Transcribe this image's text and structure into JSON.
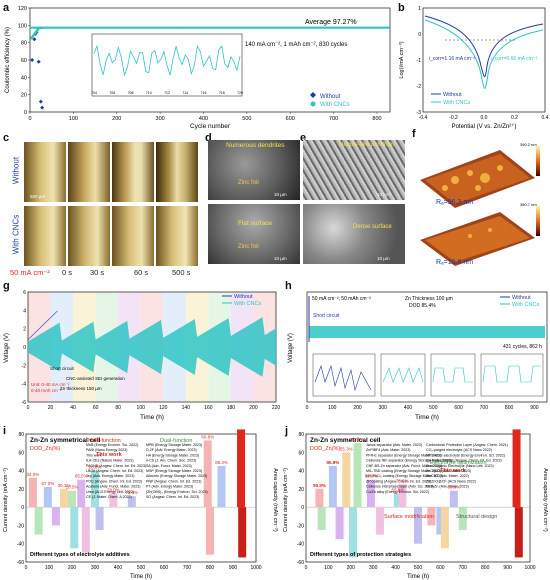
{
  "panel_labels": {
    "a": "a",
    "b": "b",
    "c": "c",
    "d": "d",
    "e": "e",
    "f": "f",
    "g": "g",
    "h": "h",
    "i": "i",
    "j": "j"
  },
  "colors": {
    "without": "#1f3ba8",
    "with_cncs": "#2fc4c4",
    "red": "#e0261d",
    "green": "#2a9a3a",
    "purple": "#8a3fb0"
  },
  "chart_data": [
    {
      "id": "a",
      "type": "scatter",
      "xlabel": "Cycle number",
      "ylabel": "Coulombic efficiency (%)",
      "xlim": [
        0,
        830
      ],
      "ylim": [
        0,
        120
      ],
      "xticks": [
        "0",
        "100",
        "200",
        "300",
        "400",
        "500",
        "600",
        "700",
        "800"
      ],
      "yticks": [
        "0",
        "20",
        "40",
        "60",
        "80",
        "100",
        "120"
      ],
      "series": [
        {
          "name": "Without",
          "symbol": "diamond"
        },
        {
          "name": "With CNCs",
          "symbol": "circle"
        }
      ],
      "annotations": [
        "Average 97.27%",
        "140 mA cm⁻², 1 mAh cm⁻², 830 cycles"
      ],
      "inset": {
        "xlim": [
          704,
          720
        ],
        "ylim": [
          92,
          100
        ],
        "xticks": [
          "704",
          "706",
          "708",
          "710",
          "712",
          "714",
          "716",
          "718",
          "720"
        ]
      },
      "points_without": [
        [
          5,
          60
        ],
        [
          10,
          84
        ],
        [
          12,
          90
        ],
        [
          15,
          92
        ],
        [
          20,
          58
        ],
        [
          25,
          12
        ],
        [
          28,
          5
        ]
      ],
      "avg": 97.27
    },
    {
      "id": "b",
      "type": "line",
      "xlabel": "Potential (V vs. Zn/Zn²⁺)",
      "ylabel": "Log(i/mA cm⁻²)",
      "xlim": [
        -0.4,
        0.4
      ],
      "xticks": [
        "-0.4",
        "-0.2",
        "0.0",
        "0.2",
        "0.4"
      ],
      "yticks": [
        "-3",
        "-2",
        "-1",
        "0",
        "1"
      ],
      "series": [
        {
          "name": "Without"
        },
        {
          "name": "With CNCs"
        }
      ],
      "annotations": [
        "i_corr=1.16 mA cm⁻²",
        "i_corr=0.66 mA cm⁻²"
      ]
    },
    {
      "id": "g",
      "type": "line",
      "xlabel": "Time (h)",
      "ylabel": "Voltage (V)",
      "xlim": [
        0,
        220
      ],
      "xticks": [
        "0",
        "20",
        "40",
        "60",
        "80",
        "100",
        "120",
        "140",
        "160",
        "180",
        "200",
        "220"
      ],
      "ylim": [
        -6,
        6
      ],
      "yticks": [
        "-6",
        "-4",
        "-2",
        "0",
        "2",
        "4",
        "6"
      ],
      "series": [
        {
          "name": "Without"
        },
        {
          "name": "With CNCs"
        }
      ],
      "annotations": [
        "Short circuit",
        "CNC-assisted SEI generation",
        "Zn thickness 150 µm",
        "Unit: 0-40 mA cm⁻²",
        "0-40 mAh cm⁻²"
      ]
    },
    {
      "id": "h",
      "type": "line",
      "xlabel": "Time (h)",
      "ylabel": "Voltage (V)",
      "xlim": [
        0,
        950
      ],
      "xticks": [
        "0",
        "100",
        "200",
        "300",
        "400",
        "500",
        "600",
        "700",
        "800",
        "900"
      ],
      "series": [
        {
          "name": "Without"
        },
        {
          "name": "With CNCs"
        }
      ],
      "annotations": [
        "50 mA cm⁻², 50 mAh cm⁻²",
        "Zn Thickness 100 µm",
        "DOD 85.4%",
        "Short circuit",
        "431 cycles, 862 h"
      ]
    },
    {
      "id": "i",
      "type": "bar",
      "title": "Zn-Zn symmetrical cell",
      "subtitle": "DOD_Zn(%)",
      "xlabel": "Time (h)",
      "ylabel": "Current density (mA cm⁻²)",
      "ylabel2": "Area capacity (mAh cm⁻²)",
      "xlim": [
        0,
        1000
      ],
      "xticks": [
        "0",
        "100",
        "200",
        "300",
        "400",
        "500",
        "600",
        "700",
        "800",
        "900",
        "1000"
      ],
      "yticks": [
        "-60",
        "-40",
        "-20",
        "0",
        "20",
        "40",
        "60",
        "80"
      ],
      "footer": "Different types of electrolyte additives",
      "group_labels": [
        "Multi-function",
        "Dual-function"
      ],
      "this_work_label": "This work",
      "this_work_value": "85.4%",
      "value_labels": [
        "34.0%",
        "67.0%",
        "30.1%",
        "10.5%",
        "65.5%",
        "20.8%",
        "29.0%",
        "73.5%",
        "60.8%",
        "85.4%"
      ],
      "bars_pos": [
        [
          30,
          32
        ],
        [
          95,
          22
        ],
        [
          165,
          20
        ],
        [
          200,
          18
        ],
        [
          240,
          30
        ],
        [
          300,
          40
        ],
        [
          380,
          15
        ],
        [
          460,
          12
        ],
        [
          790,
          73
        ],
        [
          850,
          45
        ],
        [
          935,
          85
        ]
      ],
      "bars_neg": [
        [
          55,
          -30
        ],
        [
          130,
          -20
        ],
        [
          210,
          -45
        ],
        [
          260,
          -50
        ],
        [
          320,
          -25
        ],
        [
          800,
          -52
        ],
        [
          940,
          -55
        ]
      ],
      "refs": [
        "MnB (Energy Environ. Sci. 2022)",
        "PANI (Nano Energy 2023)",
        "This work",
        "ILA-CEs (Nature Mater. 2023)",
        "PACNB (Angew. Chem. Int. Ed. 2023)",
        "LBG6 (Angew. Chem. Int. Ed. 2023)",
        "Jep (Adv. Energy Mater. 2023)",
        "POC (Angew. Chem. Int. Ed. 2023)",
        "Acetone (Adv. Funct. Mater. 2023)",
        "Urea (ACS Energy Lett. 2022)",
        "CE (J. Mater. Chem. A 2022)",
        "MPB (Energy Storage Mater. 2023)",
        "D-2F (Adv. Energy Mater. 2023)",
        "HA (Energy Storage Mater. 2023)",
        "n-CS (J. Am. Chem. Soc. 2023)",
        "SA (Adv. Funct. Mater. 2023)",
        "MSP (Energy Storage Mater. 2023)",
        "Albumin (Energy Storage Mater. 2023)",
        "PNP (Angew. Chem. Int. Ed. 2023)",
        "PT (Adv. Energy Mater. 2023)",
        "(Zn(OBS)₂ (Energy Environ. Sci. 2023)",
        "SO (Angew. Chem. Int. Ed. 2023)"
      ]
    },
    {
      "id": "j",
      "type": "bar",
      "title": "Zn-Zn symmetrical cell",
      "subtitle": "DOD_Zn(%)",
      "xlabel": "Time (h)",
      "ylabel": "Current density (mA cm⁻²)",
      "ylabel2": "Area capacity (mAh cm⁻²)",
      "xlim": [
        0,
        1000
      ],
      "xticks": [
        "0",
        "100",
        "200",
        "300",
        "400",
        "500",
        "600",
        "700",
        "800",
        "900",
        "1000"
      ],
      "yticks": [
        "-60",
        "-40",
        "-20",
        "0",
        "20",
        "40",
        "60",
        "80"
      ],
      "footer": "Different types of protection strategies",
      "group_labels": [
        "Electrolyte optimization",
        "Surface modification",
        "Structural design"
      ],
      "this_work_label": "This work",
      "this_work_value": "85.4%",
      "value_labels": [
        "74.3%",
        "56.9%",
        "55.3%",
        "51.3%",
        "62.9%",
        "55.8%",
        "75.5%",
        "60.8%",
        "40.6%",
        "90.9%",
        "85.4%"
      ],
      "bars_pos": [
        [
          60,
          20
        ],
        [
          120,
          45
        ],
        [
          180,
          60
        ],
        [
          230,
          70
        ],
        [
          290,
          30
        ],
        [
          410,
          15
        ],
        [
          430,
          25
        ],
        [
          660,
          18
        ],
        [
          940,
          85
        ]
      ],
      "bars_neg": [
        [
          70,
          -25
        ],
        [
          150,
          -35
        ],
        [
          210,
          -55
        ],
        [
          330,
          -30
        ],
        [
          500,
          -40
        ],
        [
          560,
          -20
        ],
        [
          600,
          -30
        ],
        [
          620,
          -45
        ],
        [
          700,
          -25
        ],
        [
          950,
          -55
        ]
      ],
      "refs": [
        "Janus separator (Adv. Mater. 2023)",
        "ZnPIBF4 (Adv. Mater. 2023)",
        "PFR-E separator (Energy Storage Mater. 2023)",
        "Cellulose film separator (Energy Storage Mater. 2023)",
        "CNF-BS-Zn separator (Adv. Funct. Mater. 2023)",
        "MIL-TBD coating (Energy Storage Mater. 2022)",
        "NH₂PbCl₃ coating (Energy Storage Mater. 2023)",
        "ZP coating (Angew. Chem. Int. Ed. 2023)",
        "Cellulose interphase layer (Adv. Sci. 2023)",
        "Cu/Zn alloy (Energy Environ. Sci. 2022)",
        "Carbonionic Protective Layer (Angew. Chem. 2021)",
        "CO₂-purged electrolyte (ACS Nano 2022)",
        "NPS-Hz-S electrolyte (Energy Environ. Sci. 2022)",
        "G-Hz electrolytes (Angew. Chem. Int. Ed. 2023)",
        "Dual Organic Electrolyte (Nano Lett. 2023)",
        "ZnO@Zn (Adv. Mater. 2023)",
        "Zn/CNT (Adv. Mater. 2022)",
        "Zn/ZnO@CF (ACS Nano 2022)",
        "Ni-B-Zn (Adv. Mater. 2023)"
      ]
    }
  ],
  "panel_c": {
    "side_without": "Without",
    "side_with": "With CNCs",
    "current": "50 mA cm⁻²",
    "times": [
      "0 s",
      "30 s",
      "60 s",
      "500 s"
    ],
    "scale": "500 µm"
  },
  "panel_d": {
    "top_caption": "Numerous dendrites",
    "top_foil": "Zinc foil",
    "bottom_caption": "Flat surface",
    "bottom_foil": "Zinc foil",
    "scale": "10 µm"
  },
  "panel_e": {
    "top_caption": "Needle-like dendrites",
    "bottom_caption": "Dense surface",
    "scale": "10 µm"
  },
  "panel_f": {
    "top_ra": "Rₐ=96.3 nm",
    "bottom_ra": "Rₐ=19.6 nm",
    "z_top": "390.2 nm",
    "z_bottom": "380.7 nm"
  },
  "legend_g": {
    "without": "Without",
    "with": "With CNCs"
  },
  "legend_h": {
    "without": "Without",
    "with": "With CNCs"
  }
}
